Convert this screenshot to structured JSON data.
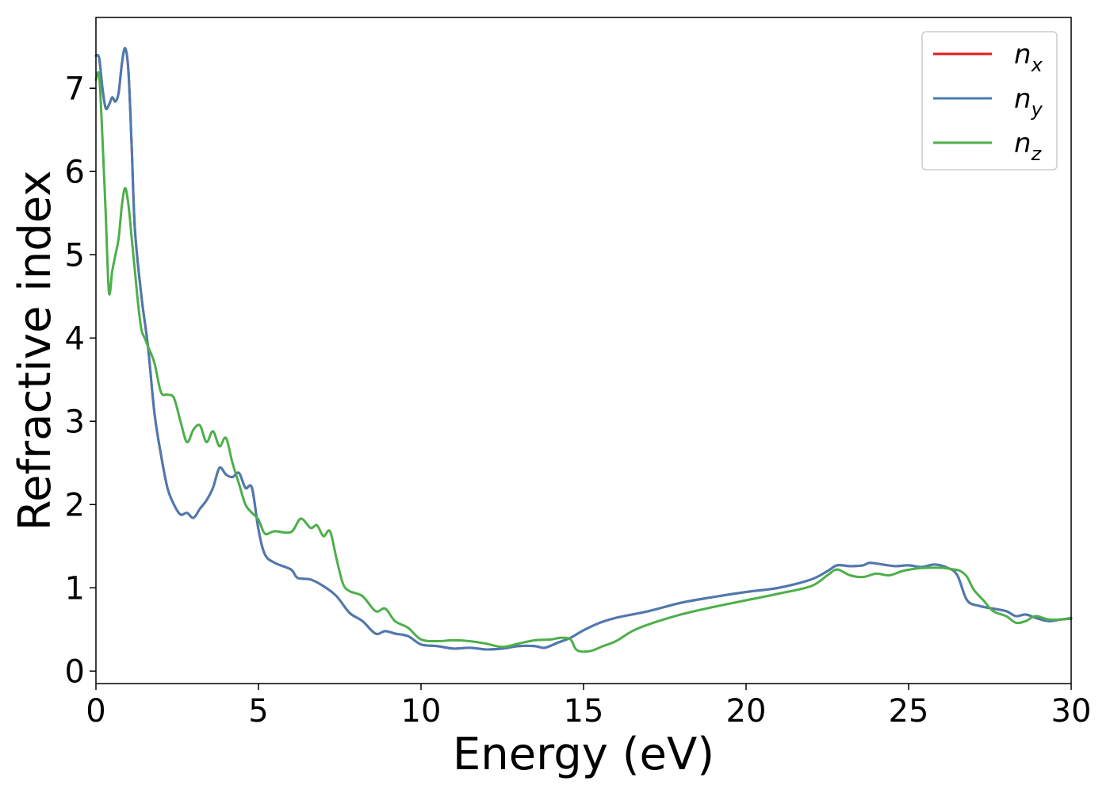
{
  "chart_data": {
    "type": "line",
    "xlabel": "Energy (eV)",
    "ylabel": "Refractive index",
    "xlim": [
      0,
      30
    ],
    "ylim": [
      -0.15,
      7.85
    ],
    "xticks": [
      0,
      5,
      10,
      15,
      20,
      25,
      30
    ],
    "yticks": [
      0,
      1,
      2,
      3,
      4,
      5,
      6,
      7
    ],
    "grid": false,
    "legend_position": "top-right",
    "series": [
      {
        "name_base": "n",
        "name_sub": "x",
        "color": "#e41a1c",
        "x": [
          0,
          0.1,
          0.2,
          0.3,
          0.4,
          0.5,
          0.6,
          0.7,
          0.8,
          0.9,
          1.0,
          1.1,
          1.2,
          1.4,
          1.6,
          1.8,
          2.0,
          2.2,
          2.4,
          2.6,
          2.8,
          3.0,
          3.2,
          3.4,
          3.6,
          3.8,
          4.0,
          4.2,
          4.4,
          4.6,
          4.8,
          5.0,
          5.2,
          5.5,
          6.0,
          6.2,
          6.6,
          7.0,
          7.4,
          7.8,
          8.2,
          8.6,
          8.9,
          9.2,
          9.6,
          10.0,
          10.5,
          11.0,
          11.5,
          12.0,
          12.5,
          13.0,
          13.5,
          13.8,
          14.2,
          14.6,
          15.0,
          15.5,
          16.0,
          17.0,
          18.0,
          19.0,
          20.0,
          21.0,
          22.0,
          22.5,
          22.8,
          23.2,
          23.6,
          23.8,
          24.2,
          24.6,
          25.0,
          25.4,
          25.8,
          26.2,
          26.5,
          26.8,
          27.2,
          27.6,
          28.0,
          28.3,
          28.6,
          28.9,
          29.3,
          29.7,
          30.0
        ],
        "y": [
          7.39,
          7.36,
          7.0,
          6.76,
          6.8,
          6.89,
          6.84,
          6.95,
          7.3,
          7.48,
          7.2,
          6.3,
          5.3,
          4.5,
          3.9,
          3.1,
          2.6,
          2.2,
          2.0,
          1.88,
          1.9,
          1.84,
          1.95,
          2.05,
          2.2,
          2.44,
          2.36,
          2.33,
          2.38,
          2.2,
          2.2,
          1.7,
          1.4,
          1.3,
          1.22,
          1.12,
          1.1,
          1.02,
          0.9,
          0.7,
          0.6,
          0.45,
          0.48,
          0.45,
          0.42,
          0.32,
          0.3,
          0.27,
          0.28,
          0.26,
          0.27,
          0.3,
          0.3,
          0.28,
          0.34,
          0.4,
          0.49,
          0.58,
          0.64,
          0.72,
          0.82,
          0.89,
          0.95,
          1.0,
          1.1,
          1.2,
          1.27,
          1.26,
          1.27,
          1.3,
          1.28,
          1.26,
          1.27,
          1.25,
          1.28,
          1.24,
          1.15,
          0.85,
          0.78,
          0.75,
          0.72,
          0.66,
          0.68,
          0.64,
          0.6,
          0.62,
          0.63
        ]
      },
      {
        "name_base": "n",
        "name_sub": "y",
        "color": "#4a7bb1",
        "x": [
          0,
          0.1,
          0.2,
          0.3,
          0.4,
          0.5,
          0.6,
          0.7,
          0.8,
          0.9,
          1.0,
          1.1,
          1.2,
          1.4,
          1.6,
          1.8,
          2.0,
          2.2,
          2.4,
          2.6,
          2.8,
          3.0,
          3.2,
          3.4,
          3.6,
          3.8,
          4.0,
          4.2,
          4.4,
          4.6,
          4.8,
          5.0,
          5.2,
          5.5,
          6.0,
          6.2,
          6.6,
          7.0,
          7.4,
          7.8,
          8.2,
          8.6,
          8.9,
          9.2,
          9.6,
          10.0,
          10.5,
          11.0,
          11.5,
          12.0,
          12.5,
          13.0,
          13.5,
          13.8,
          14.2,
          14.6,
          15.0,
          15.5,
          16.0,
          17.0,
          18.0,
          19.0,
          20.0,
          21.0,
          22.0,
          22.5,
          22.8,
          23.2,
          23.6,
          23.8,
          24.2,
          24.6,
          25.0,
          25.4,
          25.8,
          26.2,
          26.5,
          26.8,
          27.2,
          27.6,
          28.0,
          28.3,
          28.6,
          28.9,
          29.3,
          29.7,
          30.0
        ],
        "y": [
          7.39,
          7.36,
          7.0,
          6.76,
          6.8,
          6.89,
          6.84,
          6.95,
          7.3,
          7.48,
          7.2,
          6.3,
          5.3,
          4.5,
          3.9,
          3.1,
          2.6,
          2.2,
          2.0,
          1.88,
          1.9,
          1.84,
          1.95,
          2.05,
          2.2,
          2.44,
          2.36,
          2.33,
          2.38,
          2.2,
          2.2,
          1.7,
          1.4,
          1.3,
          1.22,
          1.12,
          1.1,
          1.02,
          0.9,
          0.7,
          0.6,
          0.45,
          0.48,
          0.45,
          0.42,
          0.32,
          0.3,
          0.27,
          0.28,
          0.26,
          0.27,
          0.3,
          0.3,
          0.28,
          0.34,
          0.4,
          0.49,
          0.58,
          0.64,
          0.72,
          0.82,
          0.89,
          0.95,
          1.0,
          1.1,
          1.2,
          1.27,
          1.26,
          1.27,
          1.3,
          1.28,
          1.26,
          1.27,
          1.25,
          1.28,
          1.24,
          1.15,
          0.85,
          0.78,
          0.75,
          0.72,
          0.66,
          0.68,
          0.64,
          0.6,
          0.62,
          0.63
        ]
      },
      {
        "name_base": "n",
        "name_sub": "z",
        "color": "#4daf4a",
        "x": [
          0,
          0.1,
          0.2,
          0.3,
          0.4,
          0.5,
          0.6,
          0.7,
          0.8,
          0.9,
          1.0,
          1.1,
          1.2,
          1.3,
          1.4,
          1.5,
          1.6,
          1.8,
          2.0,
          2.2,
          2.4,
          2.6,
          2.8,
          3.0,
          3.2,
          3.4,
          3.6,
          3.8,
          4.0,
          4.2,
          4.4,
          4.6,
          4.8,
          5.0,
          5.2,
          5.5,
          6.0,
          6.3,
          6.6,
          6.8,
          7.0,
          7.2,
          7.4,
          7.6,
          7.8,
          8.2,
          8.6,
          8.9,
          9.2,
          9.6,
          10.0,
          10.5,
          11.0,
          11.5,
          12.0,
          12.5,
          13.0,
          13.5,
          14.0,
          14.3,
          14.6,
          14.8,
          15.2,
          15.6,
          16.0,
          16.5,
          17.0,
          18.0,
          19.0,
          20.0,
          21.0,
          22.0,
          22.5,
          22.8,
          23.2,
          23.6,
          24.0,
          24.4,
          24.8,
          25.2,
          25.6,
          26.0,
          26.4,
          26.6,
          26.8,
          27.0,
          27.3,
          27.6,
          28.0,
          28.3,
          28.6,
          28.9,
          29.3,
          29.7,
          30.0
        ],
        "y": [
          7.1,
          7.15,
          6.4,
          5.5,
          4.55,
          4.8,
          5.0,
          5.2,
          5.6,
          5.8,
          5.6,
          5.2,
          4.8,
          4.4,
          4.1,
          4.0,
          3.9,
          3.7,
          3.35,
          3.32,
          3.28,
          3.0,
          2.75,
          2.9,
          2.95,
          2.75,
          2.88,
          2.7,
          2.8,
          2.5,
          2.25,
          2.0,
          1.9,
          1.82,
          1.65,
          1.68,
          1.67,
          1.83,
          1.72,
          1.75,
          1.62,
          1.68,
          1.35,
          1.05,
          0.96,
          0.9,
          0.72,
          0.75,
          0.6,
          0.52,
          0.38,
          0.36,
          0.37,
          0.36,
          0.33,
          0.29,
          0.33,
          0.37,
          0.38,
          0.4,
          0.38,
          0.25,
          0.24,
          0.3,
          0.36,
          0.48,
          0.56,
          0.68,
          0.77,
          0.85,
          0.93,
          1.02,
          1.15,
          1.22,
          1.15,
          1.13,
          1.17,
          1.15,
          1.2,
          1.23,
          1.24,
          1.24,
          1.22,
          1.2,
          1.13,
          0.98,
          0.85,
          0.72,
          0.66,
          0.58,
          0.6,
          0.66,
          0.62,
          0.62,
          0.64
        ]
      }
    ]
  }
}
